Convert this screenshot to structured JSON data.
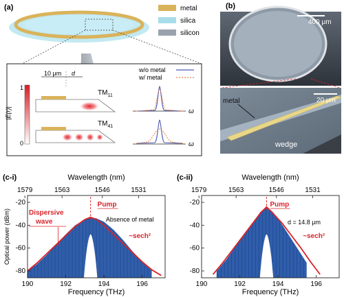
{
  "panel_a": {
    "label": "(a)",
    "legend": [
      {
        "label": "metal",
        "color": "#d9b35c"
      },
      {
        "label": "silica",
        "color": "#a9dcea"
      },
      {
        "label": "silicon",
        "color": "#9aa3ad"
      }
    ],
    "inset": {
      "dim_10um": "10 μm",
      "dim_d": "d",
      "ylabel": "|E(r)|",
      "colorbar_max": "1",
      "colorbar_min": "0",
      "mode1_main": "TM",
      "mode1_sub": "11",
      "mode2_main": "TM",
      "mode2_sub": "41",
      "legend_wo": "w/o metal",
      "legend_w": "w/ metal",
      "omega": "ω",
      "color_wo": "#4a5ab0",
      "color_w": "#f08040"
    }
  },
  "panel_b": {
    "label": "(b)",
    "scale_top": "400 μm",
    "scale_bottom": "20 μm",
    "label_metal": "metal",
    "label_wedge": "wedge"
  },
  "chart_data": [
    {
      "type": "line",
      "panel": "(c-i)",
      "xlabel": "Frequency (THz)",
      "x2label": "Wavelength (nm)",
      "ylabel": "Optical power (dBm)",
      "xlim": [
        190,
        197.2
      ],
      "ylim": [
        -86,
        -14
      ],
      "xticks": [
        190,
        192,
        194,
        196
      ],
      "yticks": [
        -20,
        -40,
        -60,
        -80
      ],
      "x2ticks": [
        1579,
        1563,
        1546,
        1531
      ],
      "series": [
        {
          "role": "comb envelope",
          "color": "#1f4fa0",
          "x": [
            190.0,
            190.5,
            191.0,
            191.5,
            192.0,
            192.5,
            193.0,
            193.3,
            193.6,
            194.0,
            194.5,
            195.0,
            195.5,
            196.0,
            196.5
          ],
          "y": [
            -80,
            -74,
            -66,
            -57,
            -48,
            -40,
            -35,
            -33,
            -34,
            -37,
            -44,
            -53,
            -63,
            -72,
            -79
          ]
        },
        {
          "role": "sech² fit",
          "color": "#d8242a",
          "x": [
            190.0,
            190.5,
            191.0,
            191.5,
            192.0,
            192.5,
            193.0,
            193.3,
            193.6,
            194.0,
            194.5,
            195.0,
            195.5,
            196.0,
            196.5,
            197.0
          ],
          "y": [
            -80,
            -73,
            -65,
            -57,
            -49,
            -41,
            -35,
            -33,
            -35,
            -40,
            -48,
            -56,
            -64,
            -72,
            -79,
            -84
          ]
        }
      ],
      "pump_x": 193.3,
      "annotations": {
        "dispersive_wave": [
          "Dispersive",
          "wave"
        ],
        "pump": "Pump",
        "absence": "Absence of metal",
        "sech": "~sech²"
      },
      "dispersive_wave_x": 191.6
    },
    {
      "type": "line",
      "panel": "(c-ii)",
      "xlabel": "Frequency (THz)",
      "x2label": "Wavelength (nm)",
      "ylabel": "",
      "xlim": [
        190,
        197.2
      ],
      "ylim": [
        -86,
        -14
      ],
      "xticks": [
        190,
        192,
        194,
        196
      ],
      "yticks": [
        -20,
        -40,
        -60,
        -80
      ],
      "x2ticks": [
        1579,
        1563,
        1546,
        1531
      ],
      "series": [
        {
          "role": "comb envelope",
          "color": "#1f4fa0",
          "x": [
            190.8,
            191.3,
            191.8,
            192.3,
            192.8,
            193.1,
            193.4,
            193.7,
            194.0,
            194.5,
            195.0,
            195.5
          ],
          "y": [
            -80,
            -70,
            -58,
            -46,
            -35,
            -28,
            -24,
            -28,
            -34,
            -47,
            -60,
            -73
          ]
        },
        {
          "role": "sech² fit",
          "color": "#d8242a",
          "x": [
            190.6,
            191.1,
            191.6,
            192.1,
            192.6,
            193.1,
            193.4,
            193.7,
            194.2,
            194.7,
            195.2,
            195.7,
            196.2
          ],
          "y": [
            -83,
            -73,
            -62,
            -51,
            -40,
            -29,
            -24,
            -29,
            -38,
            -49,
            -60,
            -72,
            -83
          ]
        }
      ],
      "pump_x": 193.4,
      "annotations": {
        "pump": "Pump",
        "d_value": "d = 14.8 μm",
        "sech": "~sech²"
      }
    }
  ]
}
